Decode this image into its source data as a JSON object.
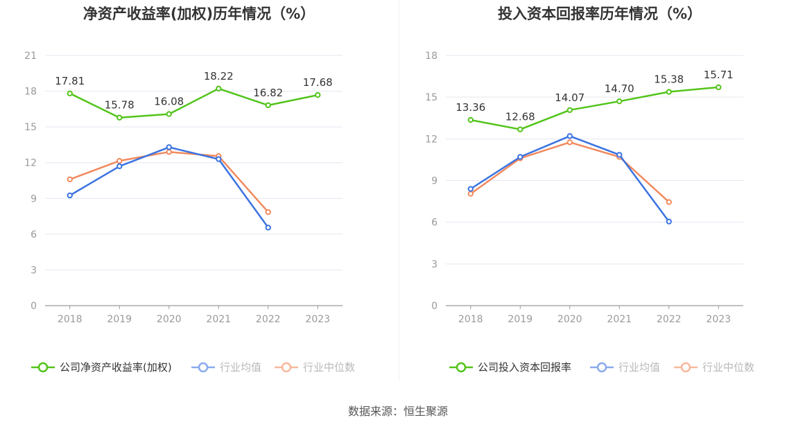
{
  "chart_data": [
    {
      "type": "line",
      "title": "净资产收益率(加权)历年情况（%）",
      "categories": [
        "2018",
        "2019",
        "2020",
        "2021",
        "2022",
        "2023"
      ],
      "y_ticks": [
        "0",
        "3",
        "6",
        "9",
        "12",
        "15",
        "18",
        "21"
      ],
      "ylim": [
        0,
        21
      ],
      "grid": true,
      "legend_position": "bottom",
      "series": [
        {
          "name": "公司净资产收益率(加权)",
          "color": "#52c41a",
          "values": [
            17.81,
            15.78,
            16.08,
            18.22,
            16.82,
            17.68
          ],
          "labels": [
            "17.81",
            "15.78",
            "16.08",
            "18.22",
            "16.82",
            "17.68"
          ]
        },
        {
          "name": "行业均值",
          "color": "#3b73e0",
          "values": [
            9.25,
            11.7,
            13.3,
            12.3,
            6.55,
            null
          ]
        },
        {
          "name": "行业中位数",
          "color": "#f2895d",
          "values": [
            10.6,
            12.15,
            12.9,
            12.55,
            7.85,
            null
          ]
        }
      ]
    },
    {
      "type": "line",
      "title": "投入资本回报率历年情况（%）",
      "categories": [
        "2018",
        "2019",
        "2020",
        "2021",
        "2022",
        "2023"
      ],
      "y_ticks": [
        "0",
        "3",
        "6",
        "9",
        "12",
        "15",
        "18"
      ],
      "ylim": [
        0,
        18
      ],
      "grid": true,
      "legend_position": "bottom",
      "series": [
        {
          "name": "公司投入资本回报率",
          "color": "#52c41a",
          "values": [
            13.36,
            12.68,
            14.07,
            14.7,
            15.38,
            15.71
          ],
          "labels": [
            "13.36",
            "12.68",
            "14.07",
            "14.70",
            "15.38",
            "15.71"
          ]
        },
        {
          "name": "行业均值",
          "color": "#3b73e0",
          "values": [
            8.4,
            10.7,
            12.2,
            10.85,
            6.05,
            null
          ]
        },
        {
          "name": "行业中位数",
          "color": "#f2895d",
          "values": [
            8.05,
            10.6,
            11.75,
            10.7,
            7.45,
            null
          ]
        }
      ]
    }
  ],
  "footer": {
    "source": "数据来源：恒生聚源"
  }
}
